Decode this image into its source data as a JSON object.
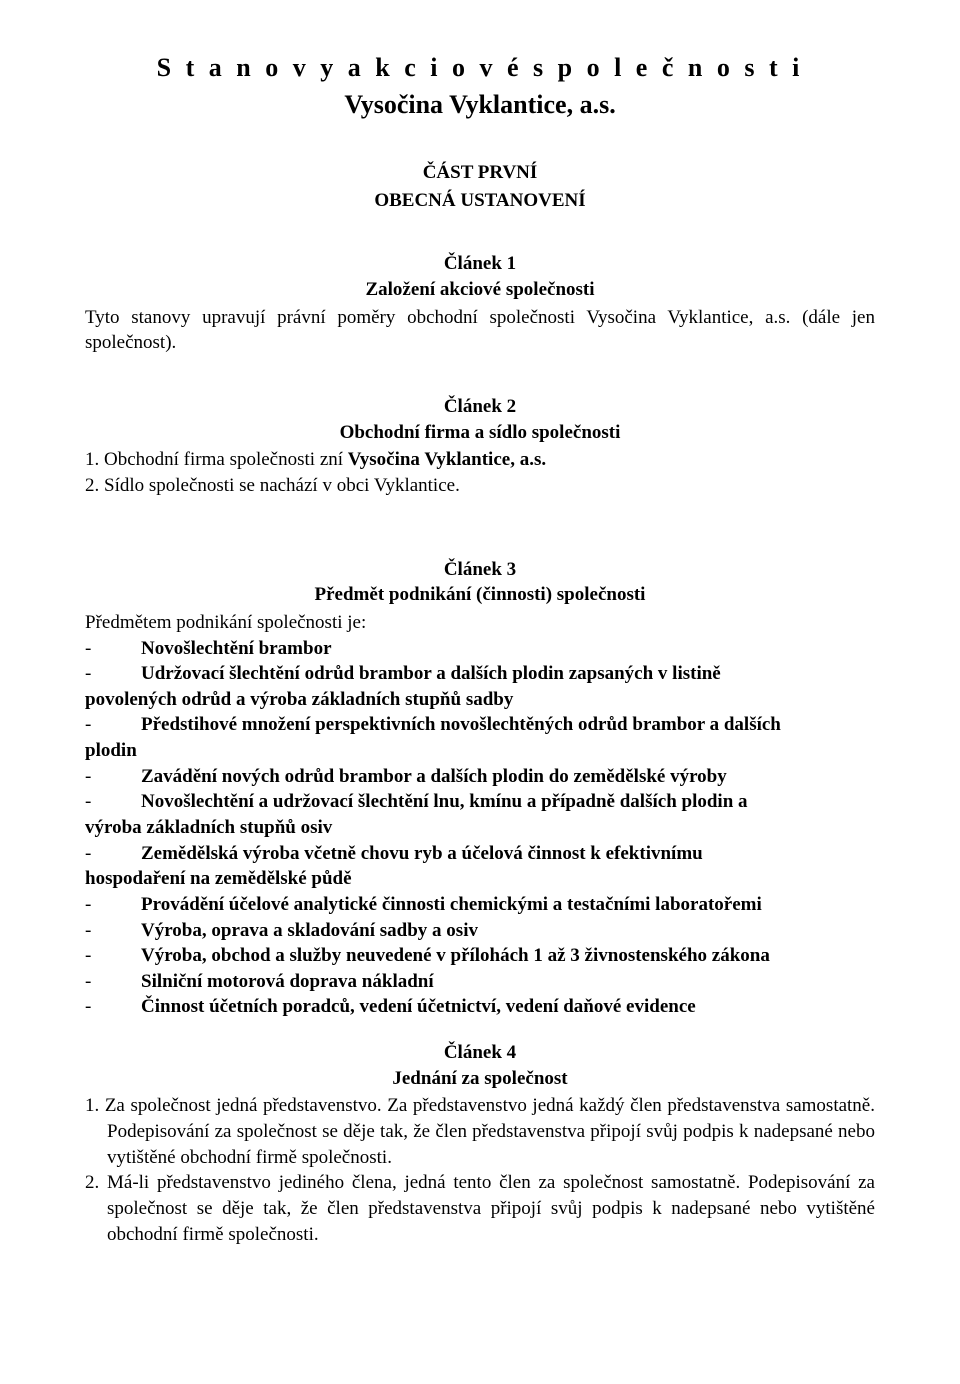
{
  "doc": {
    "title": "S t a n o v y   a k c i o v é   s p o l e č n o s t i",
    "subtitle": "Vysočina Vyklantice, a.s."
  },
  "part": {
    "line1": "ČÁST PRVNÍ",
    "line2": "OBECNÁ USTANOVENÍ"
  },
  "article1": {
    "number": "Článek 1",
    "title": "Založení akciové společnosti",
    "body": "Tyto stanovy upravují právní poměry obchodní společnosti Vysočina Vyklantice, a.s. (dále jen společnost)."
  },
  "article2": {
    "number": "Článek 2",
    "title": "Obchodní firma a sídlo společnosti",
    "item1_prefix": "1. Obchodní firma společnosti zní ",
    "item1_bold": "Vysočina Vyklantice, a.s.",
    "item2": "2. Sídlo společnosti se nachází v obci Vyklantice."
  },
  "article3": {
    "number": "Článek 3",
    "title": "Předmět podnikání (činnosti) společnosti",
    "intro": "Předmětem podnikání společnosti je:",
    "activities": [
      {
        "text": "Novošlechtění brambor",
        "justify": false,
        "continuations": []
      },
      {
        "text": "Udržovací šlechtění odrůd brambor a dalších plodin zapsaných v listině",
        "justify": true,
        "continuations": [
          "povolených odrůd a výroba základních stupňů sadby"
        ]
      },
      {
        "text": "Předstihové množení perspektivních novošlechtěných odrůd brambor a dalších",
        "justify": true,
        "continuations": [
          "plodin"
        ]
      },
      {
        "text": "Zavádění nových odrůd brambor a dalších plodin do zemědělské výroby",
        "justify": false,
        "continuations": []
      },
      {
        "text": "Novošlechtění a udržovací šlechtění lnu, kmínu a případně dalších plodin a",
        "justify": true,
        "continuations": [
          "výroba základních stupňů osiv"
        ]
      },
      {
        "text": "Zemědělská výroba včetně chovu ryb a účelová činnost k efektivnímu",
        "justify": true,
        "continuations": [
          "hospodaření na zemědělské půdě"
        ]
      },
      {
        "text": "Provádění účelové analytické činnosti chemickými a testačními laboratořemi",
        "justify": false,
        "continuations": []
      },
      {
        "text": "Výroba, oprava a skladování sadby a osiv",
        "justify": false,
        "continuations": []
      },
      {
        "text": "Výroba, obchod a služby neuvedené v přílohách 1 až 3 živnostenského zákona",
        "justify": false,
        "continuations": []
      },
      {
        "text": "Silniční motorová doprava nákladní",
        "justify": false,
        "continuations": []
      },
      {
        "text": "Činnost účetních poradců, vedení účetnictví, vedení daňové evidence",
        "justify": false,
        "continuations": []
      }
    ]
  },
  "article4": {
    "number": "Článek 4",
    "title": "Jednání za společnost",
    "item1": "1. Za společnost jedná představenstvo. Za představenstvo jedná každý člen představenstva samostatně. Podepisování za společnost se děje tak, že člen představenstva připojí svůj podpis k nadepsané nebo vytištěné obchodní firmě společnosti.",
    "item2": "2. Má-li představenstvo jediného člena, jedná tento člen za společnost samostatně. Podepisování za společnost se děje tak, že člen představenstva připojí svůj podpis k nadepsané nebo vytištěné obchodní firmě společnosti."
  },
  "ui": {
    "dash": "-"
  }
}
